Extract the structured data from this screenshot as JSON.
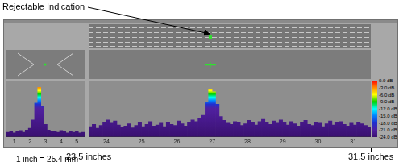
{
  "annotation": "Rejectable Indication",
  "scale_note": "1 inch = 25.4 mm",
  "range_labels": [
    {
      "value": 23.5,
      "label": "23.5 inches"
    },
    {
      "value": 31.5,
      "label": "31.5 inches"
    }
  ],
  "indication_x": 26.95,
  "colorbar": {
    "range": [
      -24,
      0
    ],
    "ticks": [
      {
        "value": 0,
        "label": "0.0 dB"
      },
      {
        "value": -3,
        "label": "-3.0 dB"
      },
      {
        "value": -6,
        "label": "-6.0 dB"
      },
      {
        "value": -9,
        "label": "-9.0 dB"
      },
      {
        "value": -12,
        "label": "-12.0 dB"
      },
      {
        "value": -15,
        "label": "-15.0 dB"
      },
      {
        "value": -18,
        "label": "-18.0 dB"
      },
      {
        "value": -21,
        "label": "-21.0 dB"
      },
      {
        "value": -24,
        "label": "-24.0 dB"
      }
    ],
    "colors": [
      "#ff0000",
      "#ff8c00",
      "#ffff00",
      "#00d000",
      "#00ffff",
      "#0080ff",
      "#2030d0",
      "#5020a0",
      "#3a1070"
    ]
  },
  "chart_data": [
    {
      "type": "bar",
      "grid": false,
      "tick_labels": "x",
      "xlim": [
        23.5,
        31.5
      ],
      "xticks": [
        24,
        25,
        26,
        27,
        28,
        29,
        30,
        31
      ],
      "ylim": [
        0,
        100
      ],
      "threshold": 48,
      "x": [
        23.55,
        23.65,
        23.75,
        23.85,
        23.95,
        24.05,
        24.15,
        24.25,
        24.35,
        24.45,
        24.55,
        24.65,
        24.75,
        24.85,
        24.95,
        25.05,
        25.15,
        25.25,
        25.35,
        25.45,
        25.55,
        25.65,
        25.75,
        25.85,
        25.95,
        26.05,
        26.15,
        26.25,
        26.35,
        26.45,
        26.55,
        26.65,
        26.75,
        26.85,
        26.95,
        27.05,
        27.15,
        27.25,
        27.35,
        27.45,
        27.55,
        27.65,
        27.75,
        27.85,
        27.95,
        28.05,
        28.15,
        28.25,
        28.35,
        28.45,
        28.55,
        28.65,
        28.75,
        28.85,
        28.95,
        29.05,
        29.15,
        29.25,
        29.35,
        29.45,
        29.55,
        29.65,
        29.75,
        29.85,
        29.95,
        30.05,
        30.15,
        30.25,
        30.35,
        30.45,
        30.55,
        30.65,
        30.75,
        30.85,
        30.95,
        31.05,
        31.15,
        31.25,
        31.35,
        31.45
      ],
      "values": [
        18,
        22,
        15,
        20,
        26,
        30,
        24,
        28,
        21,
        17,
        19,
        23,
        16,
        20,
        25,
        18,
        22,
        27,
        19,
        21,
        24,
        18,
        26,
        22,
        20,
        28,
        23,
        19,
        25,
        30,
        27,
        33,
        38,
        62,
        85,
        80,
        58,
        36,
        29,
        24,
        22,
        27,
        25,
        20,
        23,
        29,
        26,
        21,
        27,
        31,
        25,
        22,
        28,
        24,
        30,
        26,
        21,
        27,
        23,
        19,
        25,
        29,
        22,
        20,
        26,
        24,
        18,
        23,
        28,
        21,
        25,
        27,
        22,
        19,
        24,
        21,
        26,
        23,
        20,
        17
      ]
    },
    {
      "type": "bar",
      "grid": false,
      "tick_labels": "x",
      "xlim": [
        0.5,
        5.5
      ],
      "xticks": [
        1,
        2,
        3,
        4,
        5
      ],
      "ylim": [
        0,
        100
      ],
      "threshold": 48,
      "x": [
        0.6,
        0.8,
        1.0,
        1.2,
        1.4,
        1.6,
        1.8,
        2.0,
        2.2,
        2.4,
        2.6,
        2.8,
        3.0,
        3.2,
        3.4,
        3.6,
        3.8,
        4.0,
        4.2,
        4.4,
        4.6,
        4.8,
        5.0,
        5.2,
        5.4
      ],
      "values": [
        8,
        10,
        7,
        9,
        11,
        8,
        12,
        15,
        30,
        60,
        88,
        55,
        22,
        12,
        9,
        10,
        8,
        11,
        9,
        7,
        10,
        8,
        9,
        7,
        8
      ]
    }
  ]
}
